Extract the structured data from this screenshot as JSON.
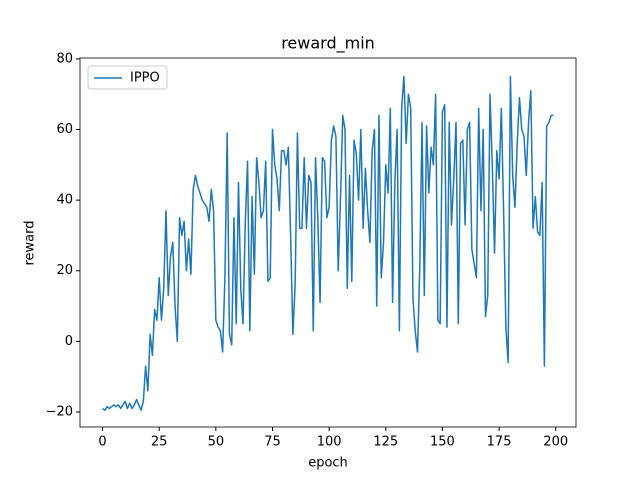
{
  "chart_data": {
    "type": "line",
    "title": "reward_min",
    "xlabel": "epoch",
    "ylabel": "reward",
    "x": [
      0,
      1,
      2,
      3,
      4,
      5,
      6,
      7,
      8,
      9,
      10,
      11,
      12,
      13,
      14,
      15,
      16,
      17,
      18,
      19,
      20,
      21,
      22,
      23,
      24,
      25,
      26,
      27,
      28,
      29,
      30,
      31,
      32,
      33,
      34,
      35,
      36,
      37,
      38,
      39,
      40,
      41,
      42,
      43,
      44,
      45,
      46,
      47,
      48,
      49,
      50,
      51,
      52,
      53,
      54,
      55,
      56,
      57,
      58,
      59,
      60,
      61,
      62,
      63,
      64,
      65,
      66,
      67,
      68,
      69,
      70,
      71,
      72,
      73,
      74,
      75,
      76,
      77,
      78,
      79,
      80,
      81,
      82,
      83,
      84,
      85,
      86,
      87,
      88,
      89,
      90,
      91,
      92,
      93,
      94,
      95,
      96,
      97,
      98,
      99,
      100,
      101,
      102,
      103,
      104,
      105,
      106,
      107,
      108,
      109,
      110,
      111,
      112,
      113,
      114,
      115,
      116,
      117,
      118,
      119,
      120,
      121,
      122,
      123,
      124,
      125,
      126,
      127,
      128,
      129,
      130,
      131,
      132,
      133,
      134,
      135,
      136,
      137,
      138,
      139,
      140,
      141,
      142,
      143,
      144,
      145,
      146,
      147,
      148,
      149,
      150,
      151,
      152,
      153,
      154,
      155,
      156,
      157,
      158,
      159,
      160,
      161,
      162,
      163,
      164,
      165,
      166,
      167,
      168,
      169,
      170,
      171,
      172,
      173,
      174,
      175,
      176,
      177,
      178,
      179,
      180,
      181,
      182,
      183,
      184,
      185,
      186,
      187,
      188,
      189,
      190,
      191,
      192,
      193,
      194,
      195,
      196,
      197,
      198,
      199
    ],
    "series": [
      {
        "name": "IPPO",
        "color": "#1f77b4",
        "values": [
          -19,
          -19.5,
          -18.5,
          -19,
          -18.5,
          -18,
          -18.5,
          -18,
          -19,
          -18,
          -17,
          -19,
          -17.5,
          -19,
          -18,
          -16.5,
          -18,
          -19.5,
          -17,
          -7,
          -14,
          2,
          -4,
          9,
          6,
          18,
          6,
          15,
          37,
          13,
          24,
          28,
          10,
          0,
          35,
          30,
          34,
          20,
          29,
          19,
          43,
          47,
          44,
          42,
          40,
          39,
          38,
          34,
          43,
          37,
          6,
          4,
          3,
          -3,
          18,
          59,
          2,
          -1,
          35,
          5,
          45,
          15,
          5,
          34,
          51,
          3,
          41,
          19,
          52,
          45,
          35,
          37,
          51,
          17,
          18,
          60,
          50,
          46,
          37,
          54,
          54,
          50,
          55,
          30,
          2,
          16,
          59,
          32,
          32,
          52,
          32,
          47,
          45,
          3,
          52,
          35,
          11,
          52,
          51,
          35,
          38,
          57,
          61,
          58,
          20,
          40,
          64,
          60,
          15,
          47,
          17,
          57,
          53,
          40,
          60,
          32,
          49,
          37,
          28,
          54,
          60,
          10,
          64,
          18,
          28,
          50,
          42,
          66,
          11,
          45,
          60,
          3,
          66,
          75,
          56,
          70,
          66,
          12,
          3,
          -3,
          21,
          62,
          13,
          61,
          42,
          55,
          50,
          70,
          6,
          5,
          65,
          67,
          4,
          62,
          33,
          46,
          62,
          5,
          56,
          57,
          33,
          60,
          62,
          26,
          22,
          18,
          66,
          37,
          60,
          7,
          13,
          70,
          50,
          25,
          54,
          46,
          66,
          37,
          4,
          -6,
          75,
          47,
          38,
          56,
          69,
          60,
          58,
          47,
          62,
          71,
          32,
          41,
          31,
          30,
          45,
          -7,
          61,
          62,
          64,
          64
        ]
      }
    ],
    "xlim": [
      -9.95,
      208.95
    ],
    "xticks": [
      0,
      25,
      50,
      75,
      100,
      125,
      150,
      175,
      200
    ],
    "ylim": [
      -24.25,
      80.25
    ],
    "yticks": [
      {
        "value": -20,
        "label": "−20"
      },
      0,
      20,
      40,
      60,
      80
    ],
    "legend": "upper left"
  }
}
